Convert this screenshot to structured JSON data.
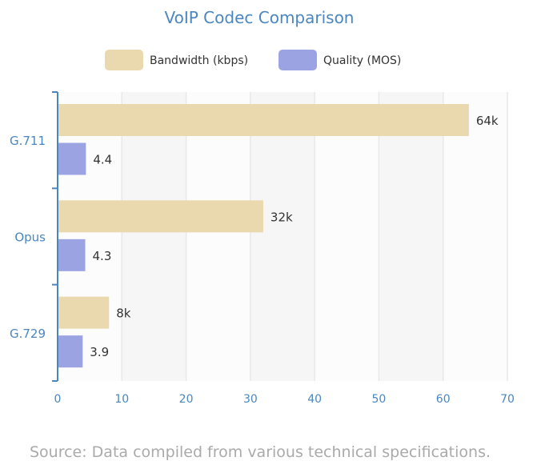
{
  "chart_data": {
    "type": "bar",
    "orientation": "horizontal",
    "title": "VoIP Codec Comparison",
    "categories": [
      "G.711",
      "Opus",
      "G.729"
    ],
    "series": [
      {
        "name": "Bandwidth (kbps)",
        "values": [
          64,
          32,
          8
        ],
        "labels": [
          "64k",
          "32k",
          "8k"
        ],
        "color": "#ead8ae"
      },
      {
        "name": "Quality (MOS)",
        "values": [
          4.4,
          4.3,
          3.9
        ],
        "labels": [
          "4.4",
          "4.3",
          "3.9"
        ],
        "color": "#9ca3e3"
      }
    ],
    "xlim": [
      0,
      70
    ],
    "xticks": [
      "0",
      "10",
      "20",
      "30",
      "40",
      "50",
      "60",
      "70"
    ],
    "grid": true,
    "legend": "top",
    "axis_color": "#4a86c0"
  },
  "source": "Source: Data compiled from various technical specifications."
}
